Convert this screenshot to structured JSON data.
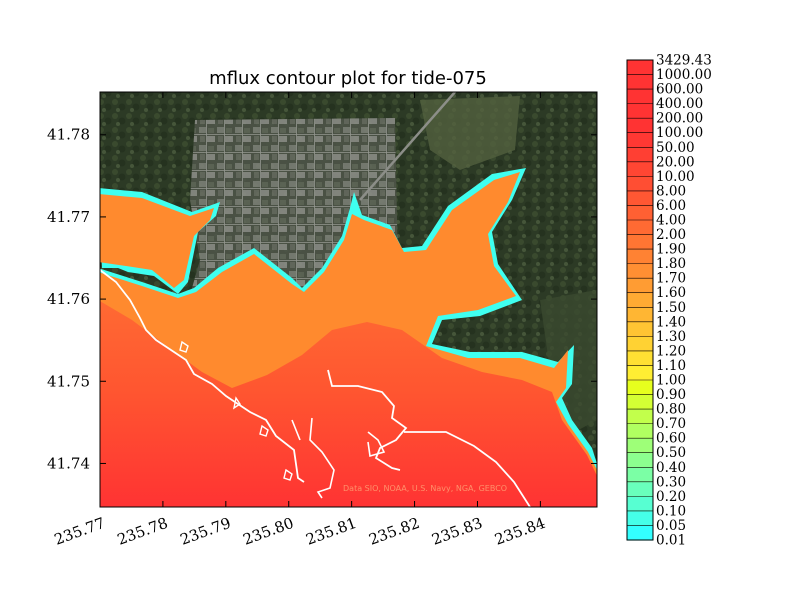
{
  "chart_data": {
    "type": "heatmap",
    "title": "mflux contour plot for tide-075",
    "xlabel": "",
    "ylabel": "",
    "xlim": [
      235.77,
      235.849
    ],
    "ylim": [
      41.7347,
      41.7852
    ],
    "x_ticks": [
      "235.77",
      "235.78",
      "235.79",
      "235.80",
      "235.81",
      "235.82",
      "235.83",
      "235.84"
    ],
    "y_ticks": [
      "41.74",
      "41.75",
      "41.76",
      "41.77",
      "41.78"
    ],
    "colorbar": {
      "levels": [
        "0.01",
        "0.05",
        "0.10",
        "0.20",
        "0.30",
        "0.40",
        "0.50",
        "0.60",
        "0.70",
        "0.80",
        "0.90",
        "1.00",
        "1.10",
        "1.20",
        "1.30",
        "1.40",
        "1.50",
        "1.60",
        "1.70",
        "1.80",
        "1.90",
        "2.00",
        "4.00",
        "6.00",
        "8.00",
        "10.00",
        "20.00",
        "50.00",
        "100.00",
        "200.00",
        "400.00",
        "600.00",
        "1000.00",
        "3429.43"
      ],
      "colors": [
        "#33ffff",
        "#45ffe9",
        "#57ffd2",
        "#69ffbc",
        "#7bffa5",
        "#8cff8f",
        "#9eff78",
        "#b0ff61",
        "#c2ff4b",
        "#d4ff34",
        "#e6ff1e",
        "#ffee33",
        "#ffe033",
        "#ffd233",
        "#ffc433",
        "#ffb633",
        "#ffaa33",
        "#ff9c33",
        "#ff8f33",
        "#ff8233",
        "#ff7533",
        "#ff6a33",
        "#ff6033",
        "#ff5733",
        "#ff4e33",
        "#ff4633",
        "#ff3f33",
        "#ff3833",
        "#ff3333",
        "#ff3333",
        "#ff3333",
        "#ff3333",
        "#ff3333"
      ]
    },
    "background": "satellite imagery",
    "attribution": "Data SIO, NOAA, U.S. Navy, NGA, GEBCO"
  }
}
